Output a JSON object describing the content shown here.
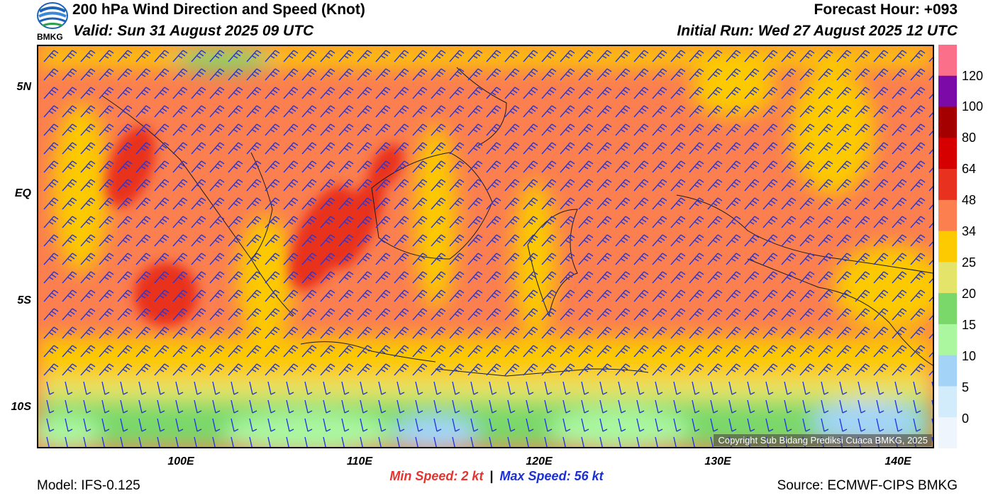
{
  "header": {
    "title": "200 hPa Wind Direction and Speed (Knot)",
    "valid": "Valid: Sun 31 August 2025 09 UTC",
    "forecast_hour": "Forecast Hour: +093",
    "initial_run": "Initial Run: Wed 27 August 2025 12 UTC"
  },
  "logo": {
    "text": "BMKG"
  },
  "axes": {
    "y_labels": [
      "5N",
      "EQ",
      "5S",
      "10S"
    ],
    "x_labels": [
      "100E",
      "110E",
      "120E",
      "130E",
      "140E"
    ]
  },
  "colorbar": {
    "labels": [
      "120",
      "100",
      "80",
      "64",
      "48",
      "34",
      "25",
      "20",
      "15",
      "10",
      "5",
      "0"
    ],
    "colors": [
      "#fb6f8a",
      "#7b0aa8",
      "#a50000",
      "#d70000",
      "#e8321f",
      "#fb7f4f",
      "#fdc900",
      "#e4e46a",
      "#7ad86a",
      "#aaf7a0",
      "#a3d4f7",
      "#d2ecfb",
      "#eff5fd"
    ]
  },
  "stats": {
    "min_label": "Min Speed:",
    "min_value": "2 kt",
    "separator": "|",
    "max_label": "Max Speed:",
    "max_value": "56 kt"
  },
  "footer": {
    "model": "Model: IFS-0.125",
    "source": "Source: ECMWF-CIPS BMKG",
    "copyright": "Copyright Sub Bidang Prediksi Cuaca BMKG, 2025"
  },
  "colors": {
    "barb": "#2338e0",
    "coast": "#1a1a1a"
  }
}
